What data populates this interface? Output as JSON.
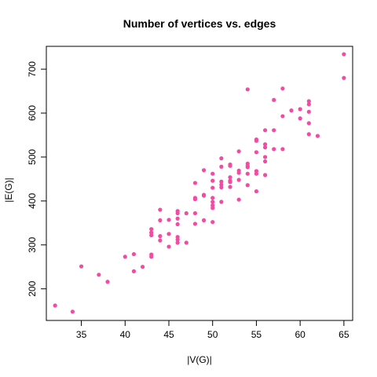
{
  "chart_data": {
    "type": "scatter",
    "title": "Number of vertices vs. edges",
    "xlabel": "|V(G)|",
    "ylabel": "|E(G)|",
    "xlim": [
      31.0,
      66.0
    ],
    "ylim": [
      128,
      752
    ],
    "x_ticks": [
      35,
      40,
      45,
      50,
      55,
      60,
      65
    ],
    "y_ticks": [
      200,
      300,
      400,
      500,
      600,
      700
    ],
    "point_color": "#f14ba3",
    "points": [
      [
        32,
        162
      ],
      [
        34,
        148
      ],
      [
        35,
        251
      ],
      [
        37,
        232
      ],
      [
        38,
        216
      ],
      [
        40,
        273
      ],
      [
        41,
        279
      ],
      [
        41,
        240
      ],
      [
        42,
        250
      ],
      [
        43,
        336
      ],
      [
        43,
        328
      ],
      [
        43,
        322
      ],
      [
        43,
        278
      ],
      [
        43,
        273
      ],
      [
        44,
        380
      ],
      [
        44,
        356
      ],
      [
        44,
        320
      ],
      [
        44,
        310
      ],
      [
        45,
        357
      ],
      [
        45,
        325
      ],
      [
        45,
        296
      ],
      [
        46,
        377
      ],
      [
        46,
        372
      ],
      [
        46,
        360
      ],
      [
        46,
        347
      ],
      [
        46,
        318
      ],
      [
        46,
        312
      ],
      [
        46,
        305
      ],
      [
        47,
        372
      ],
      [
        47,
        305
      ],
      [
        48,
        441
      ],
      [
        48,
        407
      ],
      [
        48,
        404
      ],
      [
        48,
        372
      ],
      [
        48,
        348
      ],
      [
        49,
        470
      ],
      [
        49,
        414
      ],
      [
        49,
        412
      ],
      [
        49,
        356
      ],
      [
        50,
        462
      ],
      [
        50,
        446
      ],
      [
        50,
        430
      ],
      [
        50,
        407
      ],
      [
        50,
        398
      ],
      [
        50,
        390
      ],
      [
        50,
        384
      ],
      [
        50,
        352
      ],
      [
        51,
        497
      ],
      [
        51,
        478
      ],
      [
        51,
        444
      ],
      [
        51,
        437
      ],
      [
        51,
        431
      ],
      [
        51,
        398
      ],
      [
        52,
        483
      ],
      [
        52,
        480
      ],
      [
        52,
        454
      ],
      [
        52,
        446
      ],
      [
        52,
        443
      ],
      [
        52,
        432
      ],
      [
        53,
        513
      ],
      [
        53,
        469
      ],
      [
        53,
        464
      ],
      [
        53,
        448
      ],
      [
        53,
        403
      ],
      [
        54,
        654
      ],
      [
        54,
        485
      ],
      [
        54,
        480
      ],
      [
        54,
        477
      ],
      [
        54,
        462
      ],
      [
        54,
        436
      ],
      [
        55,
        540
      ],
      [
        55,
        537
      ],
      [
        55,
        511
      ],
      [
        55,
        468
      ],
      [
        55,
        462
      ],
      [
        55,
        422
      ],
      [
        56,
        561
      ],
      [
        56,
        529
      ],
      [
        56,
        522
      ],
      [
        56,
        500
      ],
      [
        56,
        490
      ],
      [
        56,
        459
      ],
      [
        57,
        630
      ],
      [
        57,
        561
      ],
      [
        57,
        518
      ],
      [
        58,
        656
      ],
      [
        58,
        593
      ],
      [
        58,
        518
      ],
      [
        59,
        606
      ],
      [
        60,
        609
      ],
      [
        60,
        588
      ],
      [
        61,
        627
      ],
      [
        61,
        620
      ],
      [
        61,
        603
      ],
      [
        61,
        577
      ],
      [
        61,
        552
      ],
      [
        62,
        548
      ],
      [
        65,
        734
      ],
      [
        65,
        680
      ]
    ]
  }
}
